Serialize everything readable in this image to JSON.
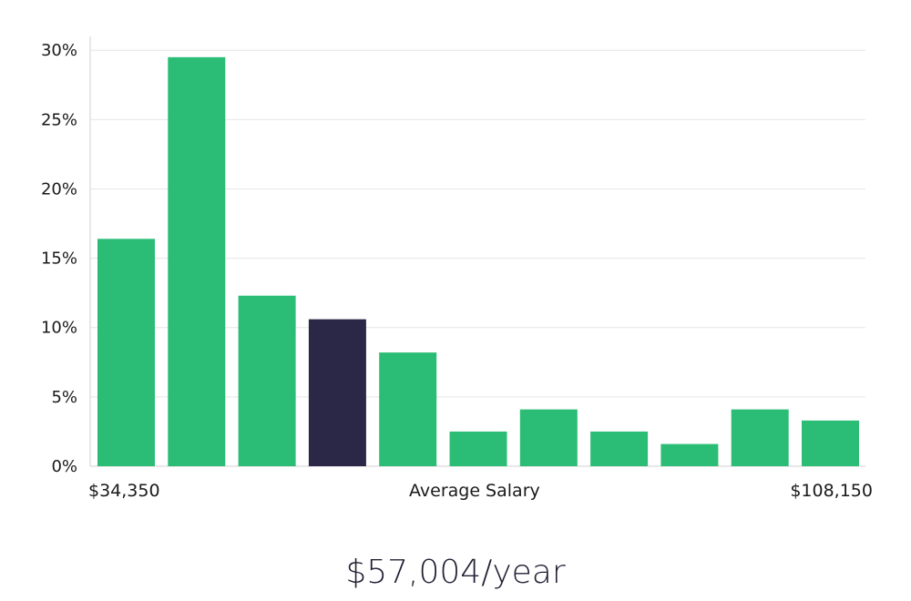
{
  "chart_data": {
    "type": "bar",
    "values": [
      16.4,
      29.5,
      12.3,
      10.6,
      8.2,
      2.5,
      4.1,
      2.5,
      1.6,
      4.1,
      3.3
    ],
    "highlight_index": 3,
    "ylim": [
      0,
      31
    ],
    "yticks": [
      {
        "value": 0,
        "label": "0%"
      },
      {
        "value": 5,
        "label": "5%"
      },
      {
        "value": 10,
        "label": "10%"
      },
      {
        "value": 15,
        "label": "15%"
      },
      {
        "value": 20,
        "label": "20%"
      },
      {
        "value": 25,
        "label": "25%"
      },
      {
        "value": 30,
        "label": "30%"
      }
    ],
    "grid": true,
    "colors": {
      "bar": "#2bbd76",
      "highlight": "#2b2747",
      "grid": "#e6e6e6",
      "axis": "#d0d0d0"
    }
  },
  "x_axis": {
    "min_label": "$34,350",
    "center_label": "Average Salary",
    "max_label": "$108,150"
  },
  "summary": {
    "average_salary": "$57,004/year"
  }
}
